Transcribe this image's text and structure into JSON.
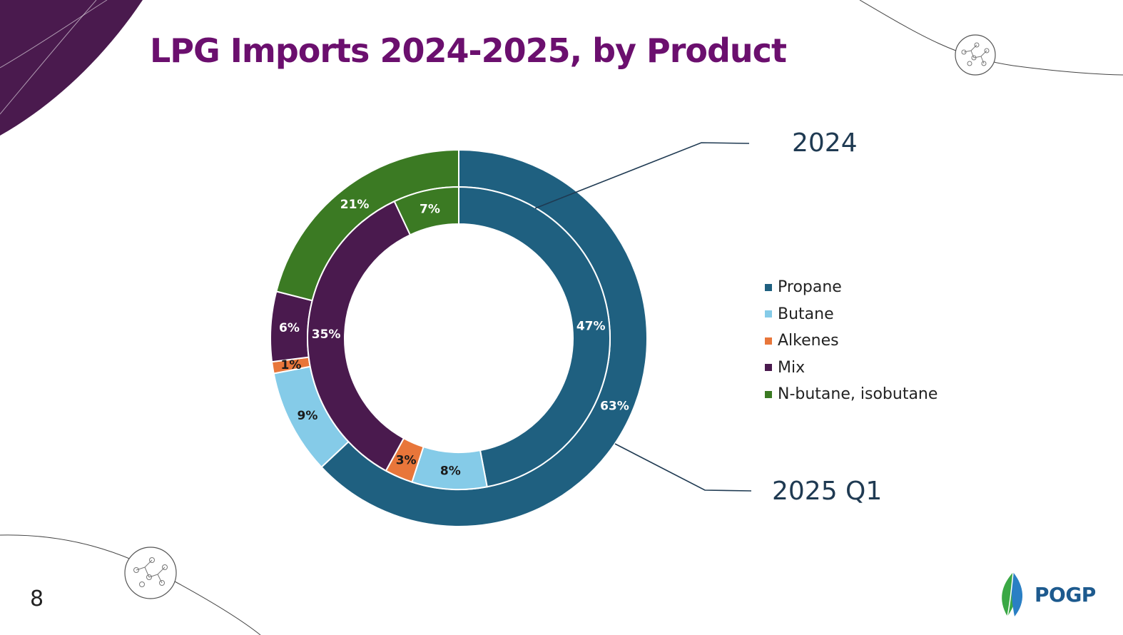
{
  "title": "LPG Imports 2024-2025, by Product",
  "page_number": "8",
  "logo_text": "POGP",
  "ring_labels": {
    "outer": "2024",
    "inner": "2025 Q1"
  },
  "colors": {
    "title": "#6b0f6e",
    "corner": "#4a1a4e",
    "Propane": "#1f6080",
    "Butane": "#85cbe8",
    "Alkenes": "#e8763a",
    "Mix": "#4a1a4e",
    "N-butane, isobutane": "#3b7a23"
  },
  "chart_data": {
    "type": "doughnut",
    "title": "LPG Imports 2024-2025, by Product",
    "categories": [
      "Propane",
      "Butane",
      "Alkenes",
      "Mix",
      "N-butane, isobutane"
    ],
    "series": [
      {
        "name": "2024",
        "ring": "outer",
        "values": [
          63,
          9,
          1,
          6,
          21
        ]
      },
      {
        "name": "2025 Q1",
        "ring": "inner",
        "values": [
          47,
          8,
          3,
          35,
          7
        ]
      }
    ],
    "unit": "%",
    "legend": "right"
  }
}
